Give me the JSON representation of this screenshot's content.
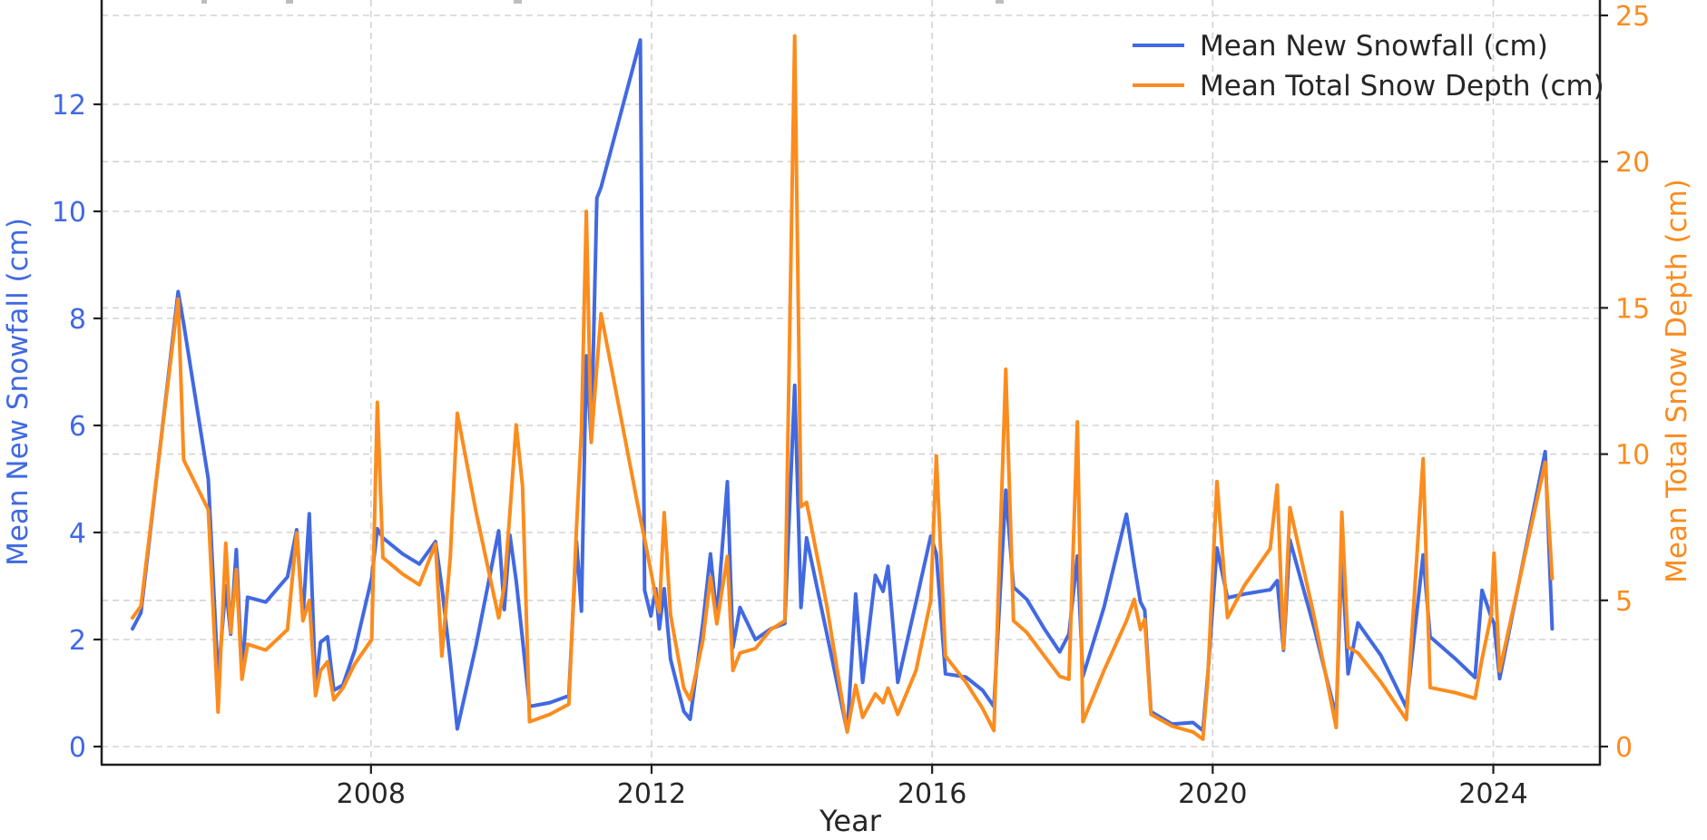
{
  "chart_data": {
    "type": "line",
    "xlabel": "Year",
    "x_axis": {
      "ticks": [
        2008,
        2012,
        2016,
        2020,
        2024
      ],
      "range": [
        2004.16,
        2025.52
      ],
      "grid": true
    },
    "left_axis": {
      "label": "Mean New Snowfall (cm)",
      "ticks": [
        0,
        2,
        4,
        6,
        8,
        10,
        12
      ],
      "range": [
        0,
        13.95
      ],
      "color": "#4169e1"
    },
    "right_axis": {
      "label": "Mean Total Snow Depth (cm)",
      "ticks": [
        0,
        5,
        10,
        15,
        20,
        25
      ],
      "range": [
        0,
        25.55
      ],
      "color": "#fb8c1e"
    },
    "legend": {
      "position": "upper right",
      "items": [
        {
          "label": "Mean New Snowfall (cm)",
          "color": "#4169e1",
          "axis": "left"
        },
        {
          "label": "Mean Total Snow Depth (cm)",
          "color": "#fb8c1e",
          "axis": "right"
        }
      ]
    },
    "grid": true,
    "point_format": [
      "year",
      "mean_new_snowfall_cm",
      "mean_total_snow_depth_cm"
    ],
    "points": [
      [
        2004.6,
        2.2,
        4.4
      ],
      [
        2004.72,
        2.5,
        4.8
      ],
      [
        2005.25,
        8.5,
        15.3
      ],
      [
        2005.33,
        7.9,
        9.8
      ],
      [
        2005.68,
        5.0,
        8.1
      ],
      [
        2005.82,
        1.27,
        1.18
      ],
      [
        2005.93,
        3.0,
        6.95
      ],
      [
        2006.0,
        2.1,
        3.9
      ],
      [
        2006.08,
        3.68,
        6.05
      ],
      [
        2006.16,
        1.35,
        2.3
      ],
      [
        2006.24,
        2.79,
        3.5
      ],
      [
        2006.5,
        2.7,
        3.3
      ],
      [
        2006.81,
        3.17,
        4.0
      ],
      [
        2006.94,
        4.05,
        7.3
      ],
      [
        2007.03,
        2.4,
        4.3
      ],
      [
        2007.12,
        4.35,
        5.0
      ],
      [
        2007.21,
        1.12,
        1.74
      ],
      [
        2007.28,
        1.95,
        2.6
      ],
      [
        2007.38,
        2.05,
        2.9
      ],
      [
        2007.47,
        1.05,
        1.6
      ],
      [
        2007.6,
        1.15,
        2.0
      ],
      [
        2007.77,
        1.8,
        2.83
      ],
      [
        2008.01,
        3.15,
        3.66
      ],
      [
        2008.09,
        4.07,
        11.77
      ],
      [
        2008.17,
        3.9,
        6.46
      ],
      [
        2008.45,
        3.6,
        5.9
      ],
      [
        2008.69,
        3.41,
        5.53
      ],
      [
        2008.92,
        3.83,
        6.93
      ],
      [
        2009.01,
        2.98,
        3.1
      ],
      [
        2009.13,
        1.6,
        6.5
      ],
      [
        2009.23,
        0.33,
        11.4
      ],
      [
        2009.5,
        1.9,
        8.0
      ],
      [
        2009.82,
        4.03,
        4.4
      ],
      [
        2009.9,
        2.56,
        5.5
      ],
      [
        2009.98,
        3.95,
        8.0
      ],
      [
        2010.07,
        3.1,
        11.0
      ],
      [
        2010.16,
        2.0,
        8.9
      ],
      [
        2010.26,
        0.75,
        0.85
      ],
      [
        2010.55,
        0.82,
        1.1
      ],
      [
        2010.82,
        0.95,
        1.45
      ],
      [
        2010.93,
        3.83,
        7.5
      ],
      [
        2011.0,
        2.53,
        10.8
      ],
      [
        2011.07,
        7.3,
        18.3
      ],
      [
        2011.14,
        5.7,
        10.4
      ],
      [
        2011.22,
        10.25,
        13.0
      ],
      [
        2011.28,
        10.45,
        14.8
      ],
      [
        2011.84,
        13.2,
        7.8
      ],
      [
        2011.9,
        2.92,
        7.1
      ],
      [
        2011.99,
        2.44,
        6.0
      ],
      [
        2012.06,
        2.95,
        5.1
      ],
      [
        2012.11,
        2.2,
        4.6
      ],
      [
        2012.18,
        2.95,
        8.0
      ],
      [
        2012.27,
        1.63,
        4.5
      ],
      [
        2012.46,
        0.66,
        2.0
      ],
      [
        2012.55,
        0.51,
        1.6
      ],
      [
        2012.73,
        2.29,
        3.6
      ],
      [
        2012.84,
        3.6,
        5.8
      ],
      [
        2012.93,
        2.4,
        4.2
      ],
      [
        2013.08,
        4.95,
        6.5
      ],
      [
        2013.16,
        1.85,
        2.6
      ],
      [
        2013.26,
        2.6,
        3.2
      ],
      [
        2013.48,
        2.0,
        3.35
      ],
      [
        2013.7,
        2.2,
        4.0
      ],
      [
        2013.9,
        2.3,
        4.3
      ],
      [
        2014.04,
        6.75,
        24.3
      ],
      [
        2014.13,
        2.6,
        8.2
      ],
      [
        2014.21,
        3.9,
        8.35
      ],
      [
        2014.5,
        2.1,
        4.8
      ],
      [
        2014.79,
        0.28,
        0.5
      ],
      [
        2014.91,
        2.85,
        2.1
      ],
      [
        2015.01,
        1.2,
        1.0
      ],
      [
        2015.19,
        3.2,
        1.8
      ],
      [
        2015.3,
        2.9,
        1.5
      ],
      [
        2015.37,
        3.37,
        2.0
      ],
      [
        2015.51,
        1.2,
        1.1
      ],
      [
        2015.77,
        2.7,
        2.6
      ],
      [
        2015.98,
        3.93,
        5.0
      ],
      [
        2016.06,
        3.6,
        9.94
      ],
      [
        2016.19,
        1.36,
        3.1
      ],
      [
        2016.48,
        1.3,
        2.2
      ],
      [
        2016.72,
        1.05,
        1.3
      ],
      [
        2016.88,
        0.75,
        0.55
      ],
      [
        2017.05,
        4.79,
        12.9
      ],
      [
        2017.16,
        2.98,
        4.3
      ],
      [
        2017.35,
        2.75,
        3.9
      ],
      [
        2017.6,
        2.2,
        3.1
      ],
      [
        2017.82,
        1.77,
        2.4
      ],
      [
        2017.95,
        2.1,
        2.3
      ],
      [
        2018.07,
        3.56,
        11.1
      ],
      [
        2018.15,
        1.31,
        0.85
      ],
      [
        2018.45,
        2.6,
        2.6
      ],
      [
        2018.77,
        4.34,
        4.3
      ],
      [
        2018.88,
        3.4,
        5.03
      ],
      [
        2018.97,
        2.7,
        4.0
      ],
      [
        2019.03,
        2.55,
        4.35
      ],
      [
        2019.12,
        0.65,
        1.1
      ],
      [
        2019.42,
        0.42,
        0.7
      ],
      [
        2019.72,
        0.45,
        0.5
      ],
      [
        2019.86,
        0.3,
        0.25
      ],
      [
        2019.93,
        1.34,
        2.3
      ],
      [
        2020.06,
        3.71,
        9.06
      ],
      [
        2020.21,
        2.78,
        4.41
      ],
      [
        2020.45,
        2.85,
        5.5
      ],
      [
        2020.82,
        2.93,
        6.77
      ],
      [
        2020.92,
        3.1,
        8.94
      ],
      [
        2021.01,
        1.8,
        3.35
      ],
      [
        2021.1,
        3.86,
        8.17
      ],
      [
        2021.45,
        2.2,
        4.4
      ],
      [
        2021.76,
        0.56,
        0.65
      ],
      [
        2021.84,
        3.61,
        8.01
      ],
      [
        2021.93,
        1.36,
        3.4
      ],
      [
        2022.07,
        2.31,
        3.2
      ],
      [
        2022.4,
        1.7,
        2.2
      ],
      [
        2022.76,
        0.73,
        0.92
      ],
      [
        2023.0,
        3.58,
        9.84
      ],
      [
        2023.1,
        2.05,
        2.02
      ],
      [
        2023.45,
        1.65,
        1.85
      ],
      [
        2023.74,
        1.29,
        1.65
      ],
      [
        2023.84,
        2.92,
        3.0
      ],
      [
        2023.97,
        2.42,
        4.5
      ],
      [
        2024.01,
        2.3,
        6.62
      ],
      [
        2024.09,
        1.27,
        2.58
      ],
      [
        2024.74,
        5.51,
        9.72
      ],
      [
        2024.84,
        2.2,
        5.74
      ]
    ],
    "style": {
      "grid_color": "#cccccc",
      "spine_color": "#1f1f1f",
      "tick_label_color": "#262626",
      "line_width": 4
    }
  }
}
